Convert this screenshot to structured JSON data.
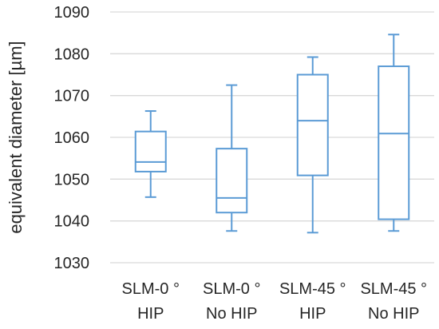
{
  "chart_data": {
    "type": "boxplot",
    "title": "",
    "xlabel": "",
    "ylabel": "equivalent diameter [µm]",
    "ylim": [
      1030,
      1090
    ],
    "yticks": [
      1030,
      1040,
      1050,
      1060,
      1070,
      1080,
      1090
    ],
    "grid": true,
    "box_color": "#5b9bd5",
    "grid_color": "#d9d9d9",
    "categories": [
      {
        "line1": "SLM-0 °",
        "line2": "HIP"
      },
      {
        "line1": "SLM-0 °",
        "line2": "No HIP"
      },
      {
        "line1": "SLM-45 °",
        "line2": "HIP"
      },
      {
        "line1": "SLM-45 °",
        "line2": "No HIP"
      }
    ],
    "boxes": [
      {
        "min": 1045.7,
        "q1": 1051.8,
        "median": 1054.1,
        "q3": 1061.4,
        "max": 1066.3
      },
      {
        "min": 1037.6,
        "q1": 1042.0,
        "median": 1045.5,
        "q3": 1057.3,
        "max": 1072.5
      },
      {
        "min": 1037.2,
        "q1": 1050.9,
        "median": 1064.0,
        "q3": 1075.0,
        "max": 1079.2
      },
      {
        "min": 1037.6,
        "q1": 1040.4,
        "median": 1060.9,
        "q3": 1077.0,
        "max": 1084.6
      }
    ]
  }
}
